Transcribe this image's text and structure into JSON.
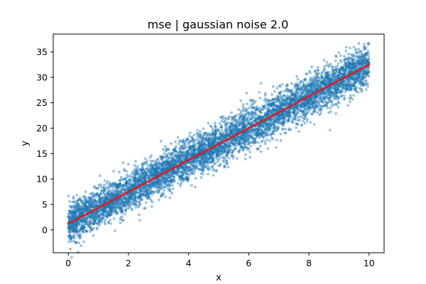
{
  "chart_data": {
    "type": "scatter",
    "title": "mse | gaussian noise 2.0",
    "xlabel": "x",
    "ylabel": "y",
    "xlim": [
      -0.5,
      10.5
    ],
    "ylim": [
      -4.5,
      38.5
    ],
    "xticks": [
      0,
      2,
      4,
      6,
      8,
      10
    ],
    "yticks": [
      0,
      5,
      10,
      15,
      20,
      25,
      30,
      35
    ],
    "grid": false,
    "legend": "none",
    "series": [
      {
        "kind": "scatter",
        "color": "#1f77b4",
        "opacity": 0.45,
        "trend": {
          "intercept": 1.2,
          "slope": 3.13,
          "x_range": [
            0,
            10
          ],
          "noise_sd": 2.0
        },
        "points": [
          [
            0.0,
            1.4
          ],
          [
            0.1,
            -1.8
          ],
          [
            0.2,
            4.6
          ],
          [
            0.3,
            2.1
          ],
          [
            0.5,
            0.2
          ],
          [
            0.6,
            5.4
          ],
          [
            0.8,
            3.5
          ],
          [
            1.0,
            4.8
          ],
          [
            1.2,
            7.9
          ],
          [
            1.4,
            2.9
          ],
          [
            1.5,
            5.6
          ],
          [
            1.8,
            8.7
          ],
          [
            2.0,
            6.3
          ],
          [
            2.2,
            10.1
          ],
          [
            2.3,
            4.7
          ],
          [
            2.5,
            9.4
          ],
          [
            2.8,
            7.0
          ],
          [
            3.0,
            12.2
          ],
          [
            3.2,
            9.1
          ],
          [
            3.5,
            13.0
          ],
          [
            3.7,
            10.3
          ],
          [
            4.0,
            14.8
          ],
          [
            4.2,
            11.5
          ],
          [
            4.5,
            16.9
          ],
          [
            4.8,
            13.4
          ],
          [
            5.0,
            17.8
          ],
          [
            5.3,
            15.2
          ],
          [
            5.5,
            19.6
          ],
          [
            5.8,
            16.3
          ],
          [
            6.0,
            20.9
          ],
          [
            6.3,
            18.6
          ],
          [
            6.5,
            22.3
          ],
          [
            6.8,
            19.4
          ],
          [
            7.0,
            24.1
          ],
          [
            7.3,
            21.5
          ],
          [
            7.5,
            25.9
          ],
          [
            7.8,
            22.8
          ],
          [
            8.0,
            27.3
          ],
          [
            8.2,
            24.2
          ],
          [
            8.5,
            29.1
          ],
          [
            8.7,
            19.6
          ],
          [
            8.8,
            26.7
          ],
          [
            9.0,
            30.4
          ],
          [
            9.2,
            27.8
          ],
          [
            9.5,
            32.1
          ],
          [
            9.7,
            29.0
          ],
          [
            9.9,
            35.8
          ],
          [
            10.0,
            31.2
          ]
        ]
      },
      {
        "kind": "line",
        "color": "#e31a1c",
        "x": [
          0,
          10
        ],
        "y": [
          1.2,
          32.5
        ]
      }
    ]
  }
}
